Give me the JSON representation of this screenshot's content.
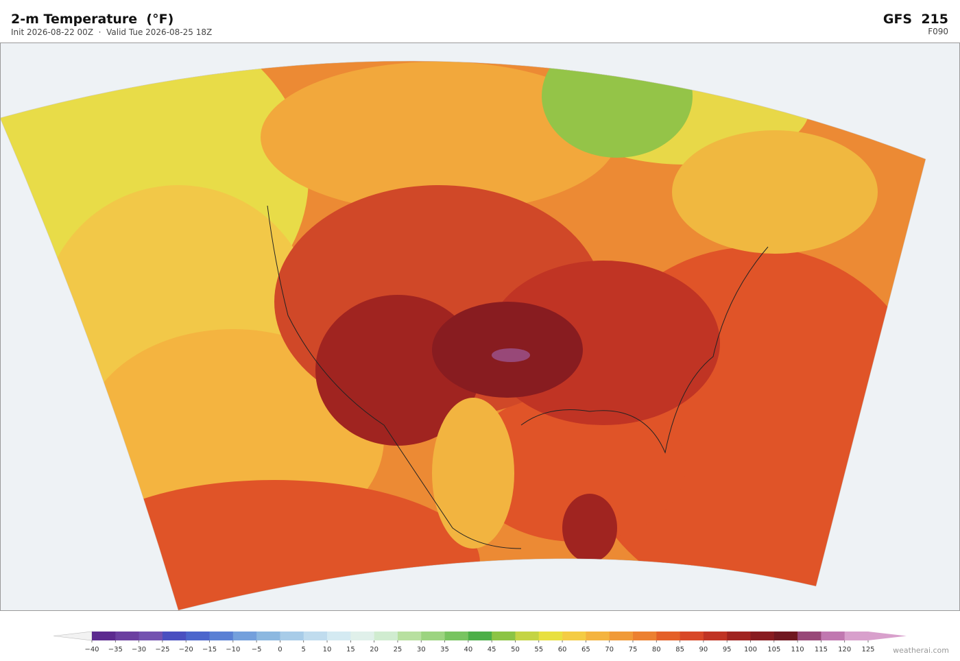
{
  "header": {
    "title": "2-m Temperature  (°F)",
    "subtitle": "Init 2026-08-22 00Z  ·  Valid Tue 2026-08-25 18Z",
    "model": "GFS  215",
    "forecast_hour": "F090"
  },
  "colorbar": {
    "ticks": [
      {
        "value": -40,
        "label": "−40"
      },
      {
        "value": -35,
        "label": "−35"
      },
      {
        "value": -30,
        "label": "−30"
      },
      {
        "value": -25,
        "label": "−25"
      },
      {
        "value": -20,
        "label": "−20"
      },
      {
        "value": -15,
        "label": "−15"
      },
      {
        "value": -10,
        "label": "−10"
      },
      {
        "value": -5,
        "label": "−5"
      },
      0,
      5,
      10,
      15,
      20,
      25,
      30,
      35,
      40,
      45,
      50,
      55,
      60,
      65,
      70,
      75,
      80,
      85,
      90,
      95,
      100,
      105,
      110,
      115,
      120,
      125
    ],
    "colors": [
      "#5c2a8f",
      "#6b3fa0",
      "#7452b0",
      "#4a4fc0",
      "#4c66cc",
      "#5a80d4",
      "#74a0dc",
      "#8cb8e0",
      "#a8cce8",
      "#c0dcee",
      "#d4eaf2",
      "#e0f0ea",
      "#d0ecd0",
      "#b8e0a0",
      "#9cd480",
      "#78c460",
      "#4caf48",
      "#8cc444",
      "#c4d444",
      "#e8e040",
      "#f4cc44",
      "#f4b440",
      "#f09a38",
      "#ec8030",
      "#e46028",
      "#d84828",
      "#c03424",
      "#a02420",
      "#881c20",
      "#701820",
      "#984878",
      "#c078b0",
      "#d8a0cc"
    ],
    "under_color": "#f2f2f2",
    "over_color": "#d8a0cc"
  },
  "footer": {
    "credit": "weatherai.com"
  }
}
